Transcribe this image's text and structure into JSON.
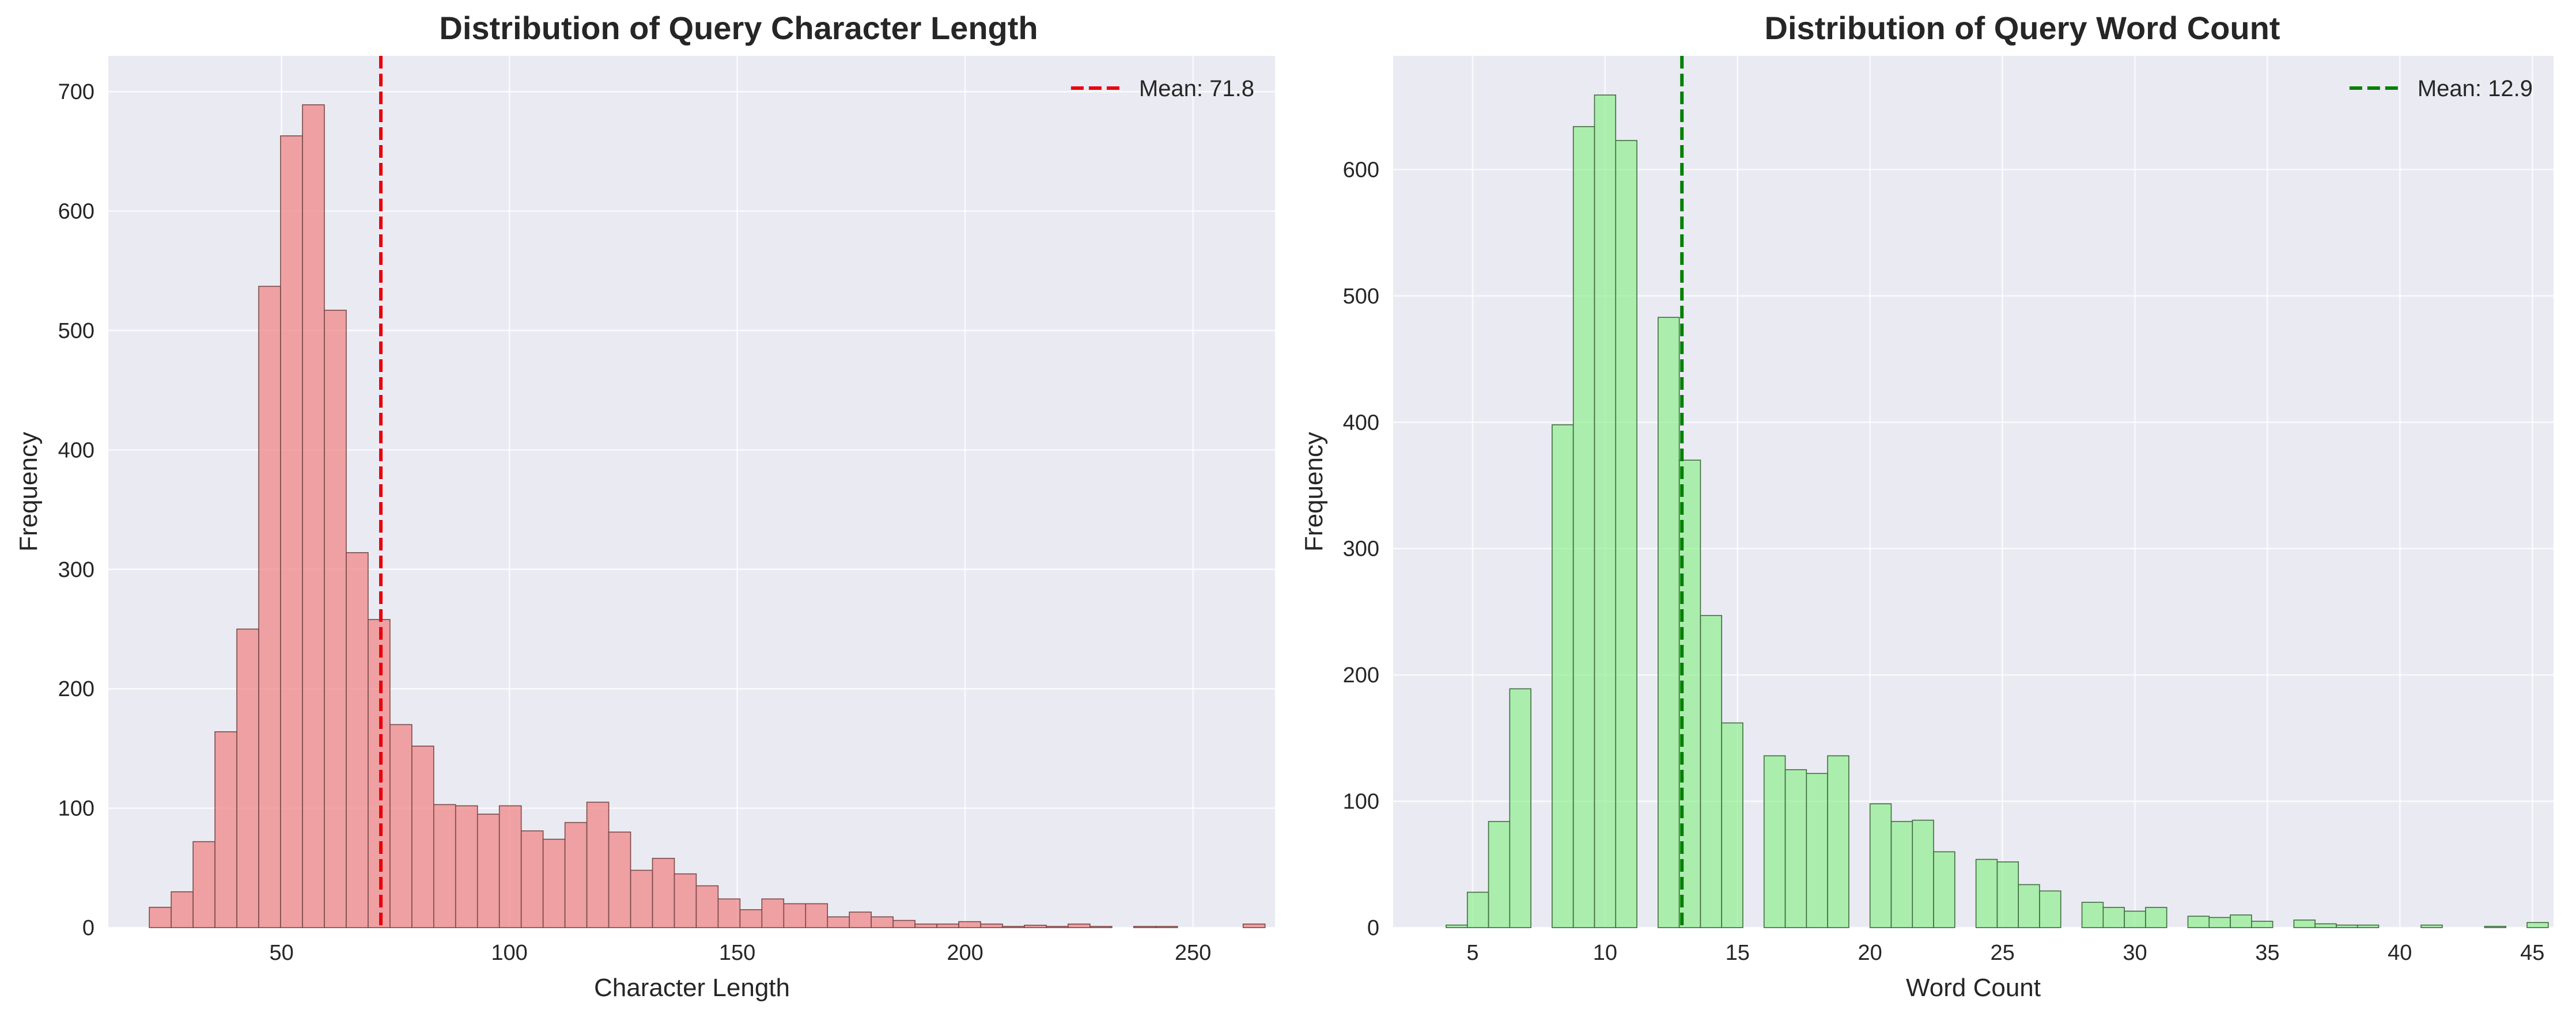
{
  "chart_data": [
    {
      "type": "bar",
      "title": "Distribution of Query Character Length",
      "xlabel": "Character Length",
      "ylabel": "Frequency",
      "xlim": [
        12,
        268
      ],
      "ylim": [
        0,
        730
      ],
      "xticks": [
        50,
        100,
        150,
        200,
        250
      ],
      "yticks": [
        0,
        100,
        200,
        300,
        400,
        500,
        600,
        700
      ],
      "bar_color": "#f08080",
      "edge_color": "#7a4a4a",
      "bin_start": 21,
      "bin_width": 4.8,
      "values": [
        17,
        30,
        72,
        164,
        250,
        537,
        663,
        689,
        517,
        314,
        258,
        170,
        152,
        103,
        102,
        95,
        102,
        81,
        74,
        88,
        105,
        80,
        48,
        58,
        45,
        35,
        24,
        15,
        24,
        20,
        20,
        9,
        13,
        9,
        6,
        3,
        3,
        5,
        3,
        1,
        2,
        1,
        3,
        1,
        0,
        1,
        1,
        0,
        0,
        0,
        3
      ],
      "mean_line": {
        "value": 71.8,
        "color": "#e8000b",
        "label": "Mean: 71.8"
      },
      "grid": true,
      "legend": "top-right"
    },
    {
      "type": "bar",
      "title": "Distribution of Query Word Count",
      "xlabel": "Word Count",
      "ylabel": "Frequency",
      "xlim": [
        2.0,
        45.8
      ],
      "ylim": [
        0,
        690
      ],
      "xticks": [
        5,
        10,
        15,
        20,
        25,
        30,
        35,
        40,
        45
      ],
      "yticks": [
        0,
        100,
        200,
        300,
        400,
        500,
        600
      ],
      "bar_color": "#90ee90",
      "edge_color": "#3f6b3f",
      "bin_start": 4,
      "bin_width": 0.8,
      "values": [
        2,
        28,
        84,
        189,
        0,
        398,
        634,
        659,
        623,
        0,
        483,
        370,
        247,
        162,
        0,
        136,
        125,
        122,
        136,
        0,
        98,
        84,
        85,
        60,
        0,
        54,
        52,
        34,
        29,
        0,
        20,
        16,
        13,
        16,
        0,
        9,
        8,
        10,
        5,
        0,
        6,
        3,
        2,
        2,
        0,
        0,
        2,
        0,
        0,
        1,
        0,
        4
      ],
      "mean_line": {
        "value": 12.9,
        "color": "#008000",
        "label": "Mean: 12.9"
      },
      "grid": true,
      "legend": "top-right"
    }
  ]
}
